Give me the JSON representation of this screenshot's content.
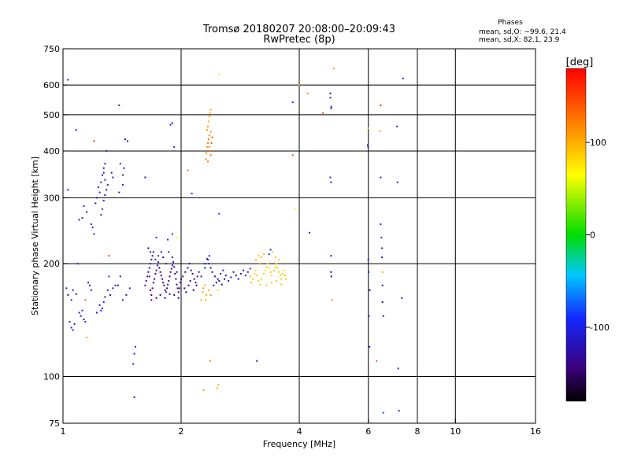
{
  "chart_data": {
    "type": "scatter",
    "title": "Tromsø 20180207 20:08:00–20:09:43",
    "subtitle": "RwPretec (8p)",
    "xlabel": "Frequency [MHz]",
    "ylabel": "Stationary phase Virtual Height [km]",
    "x_scale": "log",
    "y_scale": "log",
    "xlim": [
      1,
      16
    ],
    "ylim": [
      75,
      750
    ],
    "x_ticks": [
      1,
      2,
      4,
      6,
      8,
      10,
      16
    ],
    "x_gridlines": [
      2,
      4,
      6,
      8,
      10
    ],
    "y_ticks": [
      75,
      100,
      200,
      300,
      400,
      500,
      600,
      750
    ],
    "y_gridlines": [
      100,
      200,
      300,
      400,
      500,
      600
    ],
    "grid": true,
    "stats": {
      "heading": "Phases",
      "line_o": "mean, sd,O: −99.6, 21.4",
      "line_x": "mean, sd,X:  82.1, 23.9"
    },
    "colorbar": {
      "label": "[deg]",
      "range": [
        -180,
        180
      ],
      "ticks": [
        -100,
        0,
        100
      ],
      "colormap": "rainbow (black-purple-blue-cyan-green-yellow-red)"
    },
    "points": [
      [
        1.03,
        620,
        -110
      ],
      [
        1.02,
        172,
        -110
      ],
      [
        1.03,
        165,
        -105
      ],
      [
        1.05,
        160,
        -100
      ],
      [
        1.06,
        170,
        -95
      ],
      [
        1.08,
        166,
        -110
      ],
      [
        1.04,
        140,
        -110
      ],
      [
        1.05,
        135,
        -105
      ],
      [
        1.06,
        133,
        -100
      ],
      [
        1.07,
        138,
        -110
      ],
      [
        1.03,
        315,
        -110
      ],
      [
        1.08,
        455,
        -110
      ],
      [
        1.1,
        262,
        -110
      ],
      [
        1.12,
        265,
        -105
      ],
      [
        1.13,
        285,
        -110
      ],
      [
        1.15,
        275,
        -115
      ],
      [
        1.18,
        255,
        -110
      ],
      [
        1.19,
        250,
        -100
      ],
      [
        1.2,
        240,
        -110
      ],
      [
        1.21,
        290,
        -115
      ],
      [
        1.22,
        300,
        -110
      ],
      [
        1.23,
        320,
        -110
      ],
      [
        1.24,
        310,
        -105
      ],
      [
        1.25,
        330,
        -110
      ],
      [
        1.26,
        345,
        -110
      ],
      [
        1.27,
        360,
        -115
      ],
      [
        1.28,
        335,
        -105
      ],
      [
        1.25,
        270,
        -100
      ],
      [
        1.26,
        280,
        -105
      ],
      [
        1.27,
        295,
        -110
      ],
      [
        1.28,
        305,
        -110
      ],
      [
        1.29,
        315,
        -115
      ],
      [
        1.3,
        325,
        -100
      ],
      [
        1.27,
        350,
        -110
      ],
      [
        1.28,
        370,
        -115
      ],
      [
        1.24,
        155,
        -110
      ],
      [
        1.25,
        150,
        -105
      ],
      [
        1.26,
        152,
        -110
      ],
      [
        1.27,
        158,
        -100
      ],
      [
        1.28,
        163,
        -110
      ],
      [
        1.22,
        148,
        -105
      ],
      [
        1.3,
        170,
        -120
      ],
      [
        1.32,
        165,
        -115
      ],
      [
        1.34,
        172,
        -110
      ],
      [
        1.29,
        400,
        -110
      ],
      [
        1.2,
        425,
        150
      ],
      [
        1.14,
        160,
        130
      ],
      [
        1.16,
        178,
        -110
      ],
      [
        1.17,
        175,
        -105
      ],
      [
        1.18,
        170,
        -110
      ],
      [
        1.1,
        148,
        -100
      ],
      [
        1.11,
        145,
        -110
      ],
      [
        1.12,
        150,
        -105
      ],
      [
        1.13,
        142,
        -110
      ],
      [
        1.14,
        140,
        -105
      ],
      [
        1.15,
        127,
        100
      ],
      [
        1.09,
        200,
        -110
      ],
      [
        1.31,
        185,
        -100
      ],
      [
        1.31,
        210,
        150
      ],
      [
        1.33,
        350,
        -110
      ],
      [
        1.34,
        340,
        -105
      ],
      [
        1.39,
        310,
        -100
      ],
      [
        1.42,
        345,
        -110
      ],
      [
        1.43,
        360,
        -105
      ],
      [
        1.44,
        430,
        -115
      ],
      [
        1.46,
        425,
        -110
      ],
      [
        1.4,
        370,
        -100
      ],
      [
        1.42,
        325,
        -115
      ],
      [
        1.39,
        530,
        -120
      ],
      [
        1.42,
        160,
        -110
      ],
      [
        1.45,
        165,
        -105
      ],
      [
        1.48,
        172,
        -110
      ],
      [
        1.38,
        175,
        -130
      ],
      [
        1.36,
        175,
        -95
      ],
      [
        1.4,
        185,
        -120
      ],
      [
        1.52,
        115,
        -105
      ],
      [
        1.53,
        120,
        -100
      ],
      [
        1.51,
        108,
        -100
      ],
      [
        1.52,
        88,
        -110
      ],
      [
        1.62,
        340,
        -110
      ],
      [
        1.62,
        175,
        -120
      ],
      [
        1.63,
        180,
        -115
      ],
      [
        1.64,
        185,
        -125
      ],
      [
        1.65,
        190,
        -130
      ],
      [
        1.66,
        195,
        -120
      ],
      [
        1.67,
        200,
        -125
      ],
      [
        1.68,
        205,
        -130
      ],
      [
        1.69,
        210,
        -120
      ],
      [
        1.7,
        215,
        -110
      ],
      [
        1.65,
        220,
        -140
      ],
      [
        1.66,
        185,
        -135
      ],
      [
        1.67,
        170,
        -150
      ],
      [
        1.68,
        165,
        -145
      ],
      [
        1.69,
        172,
        -140
      ],
      [
        1.7,
        178,
        -130
      ],
      [
        1.71,
        182,
        -135
      ],
      [
        1.72,
        188,
        -140
      ],
      [
        1.73,
        192,
        -130
      ],
      [
        1.74,
        198,
        -125
      ],
      [
        1.75,
        202,
        -120
      ],
      [
        1.76,
        195,
        -140
      ],
      [
        1.77,
        190,
        -135
      ],
      [
        1.78,
        186,
        -130
      ],
      [
        1.79,
        182,
        -125
      ],
      [
        1.8,
        178,
        -140
      ],
      [
        1.81,
        175,
        -145
      ],
      [
        1.82,
        170,
        -150
      ],
      [
        1.83,
        168,
        -140
      ],
      [
        1.84,
        172,
        -135
      ],
      [
        1.85,
        176,
        -130
      ],
      [
        1.86,
        180,
        -125
      ],
      [
        1.87,
        185,
        -140
      ],
      [
        1.88,
        190,
        -135
      ],
      [
        1.89,
        194,
        -130
      ],
      [
        1.9,
        198,
        -125
      ],
      [
        1.91,
        202,
        -140
      ],
      [
        1.92,
        196,
        -135
      ],
      [
        1.93,
        188,
        -130
      ],
      [
        1.94,
        182,
        -125
      ],
      [
        1.95,
        176,
        -140
      ],
      [
        1.96,
        172,
        -145
      ],
      [
        1.97,
        168,
        -150
      ],
      [
        1.98,
        172,
        -140
      ],
      [
        1.99,
        178,
        -135
      ],
      [
        2.0,
        182,
        -130
      ],
      [
        1.72,
        205,
        -110
      ],
      [
        1.75,
        210,
        -100
      ],
      [
        1.78,
        215,
        -115
      ],
      [
        1.8,
        208,
        -120
      ],
      [
        1.83,
        200,
        -110
      ],
      [
        1.86,
        215,
        -105
      ],
      [
        1.9,
        208,
        -130
      ],
      [
        1.95,
        190,
        -110
      ],
      [
        1.68,
        160,
        -140
      ],
      [
        1.73,
        162,
        -130
      ],
      [
        1.77,
        165,
        -125
      ],
      [
        1.82,
        162,
        -135
      ],
      [
        1.87,
        166,
        -130
      ],
      [
        1.92,
        165,
        -140
      ],
      [
        1.97,
        162,
        -135
      ],
      [
        1.67,
        215,
        -100
      ],
      [
        1.73,
        235,
        -90
      ],
      [
        1.85,
        232,
        -95
      ],
      [
        1.9,
        240,
        -100
      ],
      [
        1.95,
        235,
        70
      ],
      [
        1.88,
        470,
        -110
      ],
      [
        1.9,
        475,
        -105
      ],
      [
        1.92,
        410,
        -100
      ],
      [
        2.02,
        185,
        -130
      ],
      [
        2.05,
        190,
        -135
      ],
      [
        2.08,
        195,
        -140
      ],
      [
        2.1,
        200,
        -130
      ],
      [
        2.12,
        192,
        -125
      ],
      [
        2.14,
        188,
        -140
      ],
      [
        2.16,
        182,
        -135
      ],
      [
        2.18,
        178,
        -130
      ],
      [
        2.2,
        185,
        -120
      ],
      [
        2.22,
        190,
        -125
      ],
      [
        2.04,
        172,
        -150
      ],
      [
        2.06,
        168,
        -145
      ],
      [
        2.09,
        175,
        -140
      ],
      [
        2.11,
        180,
        -135
      ],
      [
        2.15,
        170,
        -150
      ],
      [
        2.19,
        175,
        -145
      ],
      [
        2.13,
        308,
        -110
      ],
      [
        2.08,
        355,
        130
      ],
      [
        2.25,
        160,
        110
      ],
      [
        2.27,
        168,
        105
      ],
      [
        2.3,
        175,
        110
      ],
      [
        2.32,
        165,
        100
      ],
      [
        2.28,
        172,
        115
      ],
      [
        2.31,
        160,
        110
      ],
      [
        2.35,
        170,
        105
      ],
      [
        2.38,
        165,
        110
      ],
      [
        2.25,
        185,
        -110
      ],
      [
        2.3,
        195,
        -105
      ],
      [
        2.35,
        200,
        -115
      ],
      [
        2.4,
        190,
        -120
      ],
      [
        2.44,
        185,
        -125
      ],
      [
        2.48,
        182,
        -110
      ],
      [
        2.52,
        188,
        -115
      ],
      [
        2.56,
        192,
        -120
      ],
      [
        2.6,
        186,
        -125
      ],
      [
        2.64,
        180,
        -115
      ],
      [
        2.68,
        184,
        -120
      ],
      [
        2.72,
        190,
        -125
      ],
      [
        2.76,
        186,
        -115
      ],
      [
        2.8,
        182,
        -110
      ],
      [
        2.84,
        188,
        -115
      ],
      [
        2.88,
        192,
        -120
      ],
      [
        2.92,
        186,
        -110
      ],
      [
        2.96,
        190,
        -105
      ],
      [
        3.0,
        194,
        -100
      ],
      [
        2.42,
        175,
        -130
      ],
      [
        2.46,
        178,
        -135
      ],
      [
        2.5,
        180,
        -140
      ],
      [
        2.54,
        176,
        -130
      ],
      [
        2.58,
        182,
        -135
      ],
      [
        2.34,
        205,
        -110
      ],
      [
        2.36,
        210,
        -100
      ],
      [
        2.3,
        200,
        -110
      ],
      [
        2.33,
        206,
        -105
      ],
      [
        2.38,
        195,
        -140
      ],
      [
        2.31,
        380,
        120
      ],
      [
        2.32,
        395,
        115
      ],
      [
        2.33,
        410,
        110
      ],
      [
        2.34,
        420,
        120
      ],
      [
        2.35,
        430,
        125
      ],
      [
        2.36,
        440,
        115
      ],
      [
        2.33,
        455,
        110
      ],
      [
        2.34,
        465,
        105
      ],
      [
        2.35,
        480,
        100
      ],
      [
        2.36,
        495,
        95
      ],
      [
        2.37,
        505,
        100
      ],
      [
        2.38,
        515,
        105
      ],
      [
        2.37,
        400,
        130
      ],
      [
        2.38,
        390,
        125
      ],
      [
        2.39,
        420,
        140
      ],
      [
        2.4,
        435,
        145
      ],
      [
        2.36,
        410,
        130
      ],
      [
        2.34,
        375,
        125
      ],
      [
        2.38,
        450,
        120
      ],
      [
        2.5,
        640,
        60
      ],
      [
        2.5,
        272,
        -80
      ],
      [
        2.28,
        92,
        110
      ],
      [
        2.47,
        93,
        100
      ],
      [
        2.49,
        95,
        95
      ],
      [
        2.37,
        110,
        120
      ],
      [
        2.48,
        170,
        80
      ],
      [
        3.0,
        185,
        100
      ],
      [
        3.02,
        178,
        95
      ],
      [
        3.05,
        182,
        90
      ],
      [
        3.08,
        188,
        85
      ],
      [
        3.1,
        192,
        80
      ],
      [
        3.12,
        186,
        90
      ],
      [
        3.15,
        180,
        85
      ],
      [
        3.18,
        176,
        95
      ],
      [
        3.2,
        182,
        90
      ],
      [
        3.25,
        188,
        85
      ],
      [
        3.28,
        192,
        80
      ],
      [
        3.3,
        196,
        90
      ],
      [
        3.32,
        200,
        85
      ],
      [
        3.35,
        195,
        80
      ],
      [
        3.38,
        190,
        90
      ],
      [
        3.4,
        186,
        85
      ],
      [
        3.45,
        192,
        90
      ],
      [
        3.48,
        196,
        85
      ],
      [
        3.5,
        200,
        80
      ],
      [
        3.52,
        195,
        90
      ],
      [
        3.55,
        190,
        85
      ],
      [
        3.58,
        186,
        80
      ],
      [
        3.6,
        182,
        90
      ],
      [
        3.62,
        188,
        85
      ],
      [
        3.65,
        192,
        80
      ],
      [
        3.68,
        186,
        90
      ],
      [
        3.7,
        182,
        85
      ],
      [
        3.1,
        205,
        100
      ],
      [
        3.15,
        210,
        95
      ],
      [
        3.2,
        208,
        100
      ],
      [
        3.25,
        212,
        95
      ],
      [
        3.18,
        200,
        105
      ],
      [
        3.42,
        215,
        90
      ],
      [
        3.48,
        208,
        95
      ],
      [
        3.55,
        205,
        90
      ],
      [
        3.35,
        212,
        -100
      ],
      [
        3.38,
        218,
        -90
      ],
      [
        3.3,
        175,
        95
      ],
      [
        3.4,
        178,
        90
      ],
      [
        3.5,
        180,
        95
      ],
      [
        3.6,
        176,
        90
      ],
      [
        3.12,
        110,
        -90
      ],
      [
        3.85,
        540,
        -110
      ],
      [
        3.9,
        280,
        70
      ],
      [
        3.85,
        390,
        140
      ],
      [
        4.0,
        600,
        110
      ],
      [
        4.2,
        570,
        120
      ],
      [
        4.25,
        242,
        -110
      ],
      [
        4.6,
        505,
        150
      ],
      [
        4.8,
        570,
        -120
      ],
      [
        4.8,
        555,
        -110
      ],
      [
        4.82,
        520,
        -100
      ],
      [
        4.83,
        525,
        -95
      ],
      [
        4.8,
        340,
        -100
      ],
      [
        4.82,
        330,
        -105
      ],
      [
        4.82,
        210,
        -120
      ],
      [
        4.82,
        190,
        -130
      ],
      [
        4.83,
        185,
        -140
      ],
      [
        4.85,
        160,
        110
      ],
      [
        4.9,
        665,
        110
      ],
      [
        5.98,
        460,
        60
      ],
      [
        5.98,
        415,
        -110
      ],
      [
        5.99,
        410,
        -105
      ],
      [
        6.0,
        205,
        -105
      ],
      [
        6.01,
        190,
        -110
      ],
      [
        6.02,
        145,
        -90
      ],
      [
        6.04,
        120,
        -110
      ],
      [
        6.05,
        170,
        -130
      ],
      [
        6.3,
        110,
        140
      ],
      [
        6.42,
        452,
        110
      ],
      [
        6.45,
        530,
        170
      ],
      [
        6.45,
        340,
        -110
      ],
      [
        6.45,
        255,
        -90
      ],
      [
        6.48,
        235,
        -100
      ],
      [
        6.5,
        220,
        -110
      ],
      [
        6.5,
        208,
        -120
      ],
      [
        6.52,
        190,
        100
      ],
      [
        6.52,
        175,
        -130
      ],
      [
        6.52,
        158,
        -140
      ],
      [
        6.55,
        145,
        -110
      ],
      [
        6.55,
        80,
        -80
      ],
      [
        7.1,
        465,
        -110
      ],
      [
        7.12,
        330,
        -95
      ],
      [
        7.15,
        105,
        -100
      ],
      [
        7.18,
        81,
        -110
      ],
      [
        7.3,
        162,
        -100
      ],
      [
        7.35,
        625,
        -90
      ]
    ]
  }
}
